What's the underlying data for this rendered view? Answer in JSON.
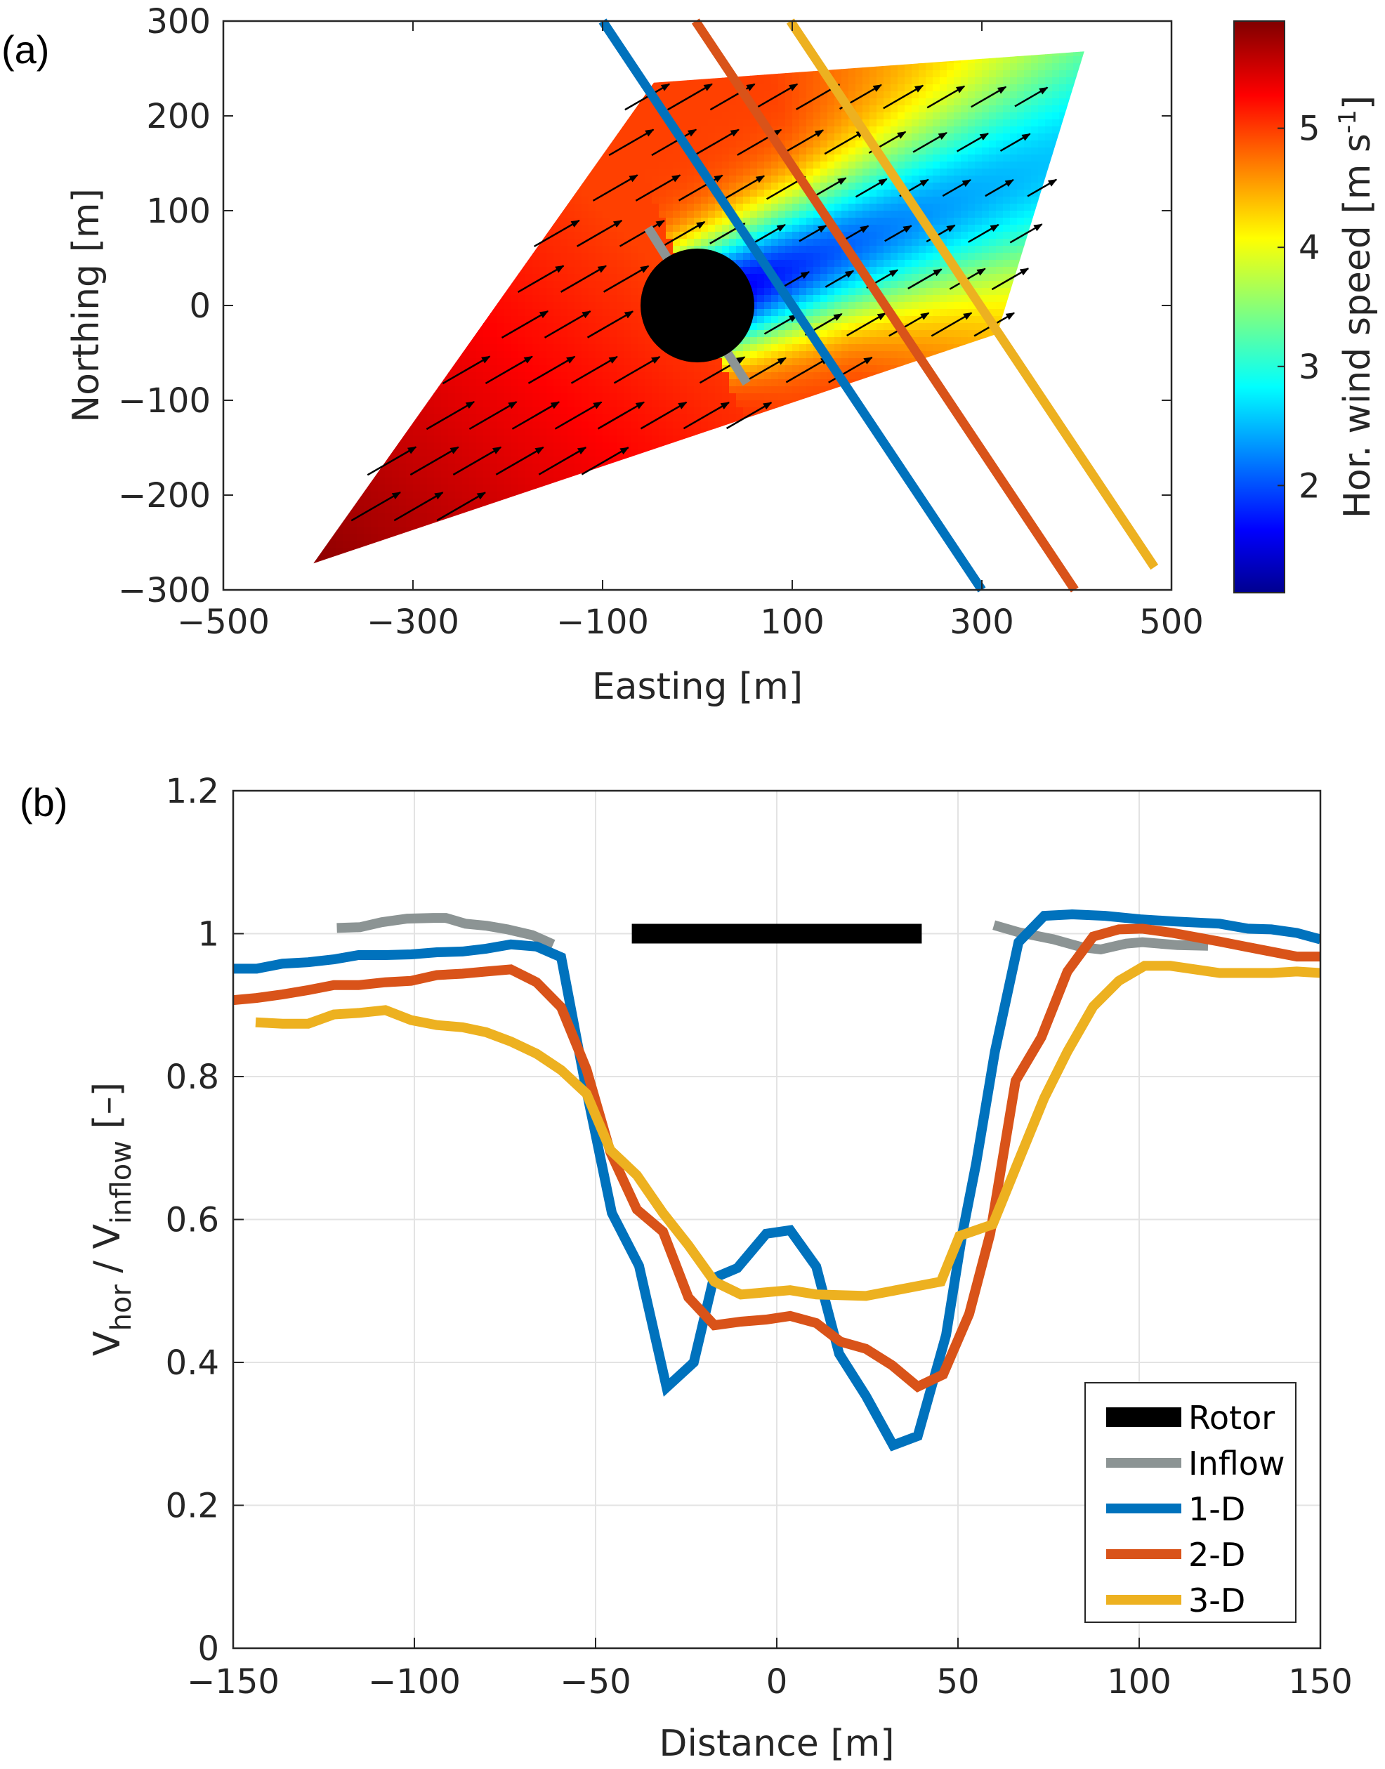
{
  "chart_data": [
    {
      "panel": "(a)",
      "type": "heatmap",
      "title": "",
      "xlabel": "Easting [m]",
      "ylabel": "Northing [m]",
      "xlim": [
        -500,
        500
      ],
      "ylim": [
        -300,
        300
      ],
      "xticks": [
        -500,
        -300,
        -100,
        100,
        300,
        500
      ],
      "yticks": [
        -300,
        -200,
        -100,
        0,
        100,
        200,
        300
      ],
      "xtick_labels": [
        "−500",
        "−300",
        "−100",
        "100",
        "300",
        "500"
      ],
      "ytick_labels": [
        "−300",
        "−200",
        "−100",
        "0",
        "100",
        "200",
        "300"
      ],
      "grid": false,
      "colorbar": {
        "label": "Hor. wind speed [m s⁻¹]",
        "label_main": "Hor. wind speed [m s",
        "label_exp": "-1",
        "label_end": "]",
        "clim": [
          1.1,
          5.9
        ],
        "ticks": [
          2,
          3,
          4,
          5
        ],
        "colormap": "jet"
      },
      "scan_area_polygon": [
        [
          -405,
          -272
        ],
        [
          -46,
          235
        ],
        [
          408,
          268
        ],
        [
          316,
          -30
        ]
      ],
      "wind_speed_field": {
        "background_speed": 5.0,
        "southwest_corner_speed": 5.8,
        "north_east_speed": 2.4,
        "wake_axis_direction_deg": 22,
        "wake_min_speed": 1.4
      },
      "rotor": {
        "center": [
          0,
          0
        ],
        "diameter": 120,
        "color": "#000000"
      },
      "inflow_line": {
        "from": [
          -52,
          82
        ],
        "to": [
          52,
          -82
        ],
        "color": "#8C9494"
      },
      "transects": [
        {
          "name": "1-D",
          "from": [
            -100,
            300
          ],
          "to": [
            300,
            -300
          ],
          "color": "#0072BD"
        },
        {
          "name": "2-D",
          "from": [
            -2,
            300
          ],
          "to": [
            398,
            -300
          ],
          "color": "#D95319"
        },
        {
          "name": "3-D",
          "from": [
            98,
            300
          ],
          "to": [
            482,
            -276
          ],
          "color": "#EDB120"
        }
      ],
      "wind_vectors": {
        "direction_deg_from_east": 30,
        "color": "#000000"
      }
    },
    {
      "panel": "(b)",
      "type": "line",
      "title": "",
      "xlabel": "Distance [m]",
      "ylabel_main": "V",
      "ylabel_sub1": "hor",
      "ylabel_mid": " / V",
      "ylabel_sub2": "inflow",
      "ylabel_end": " [–]",
      "ylabel": "V_hor / V_inflow [–]",
      "xlim": [
        -150,
        150
      ],
      "ylim": [
        0,
        1.2
      ],
      "xticks": [
        -150,
        -100,
        -50,
        0,
        50,
        100,
        150
      ],
      "yticks": [
        0,
        0.2,
        0.4,
        0.6,
        0.8,
        1,
        1.2
      ],
      "xtick_labels": [
        "−150",
        "−100",
        "−50",
        "0",
        "50",
        "100",
        "150"
      ],
      "ytick_labels": [
        "0",
        "0.2",
        "0.4",
        "0.6",
        "0.8",
        "1",
        "1.2"
      ],
      "grid": true,
      "legend_position": "bottom-right",
      "series": [
        {
          "name": "Rotor",
          "color": "#000000",
          "kind": "bar",
          "segments": [
            {
              "x": [
                -40,
                40
              ],
              "y": [
                1.0,
                1.0
              ]
            }
          ]
        },
        {
          "name": "Inflow",
          "color": "#8C9494",
          "kind": "line",
          "segments": [
            {
              "x": [
                -121.4,
                -115,
                -109,
                -102,
                -94.8,
                -91.3,
                -85.9,
                -80,
                -74.3,
                -67.5,
                -61.7
              ],
              "y": [
                1.008,
                1.009,
                1.016,
                1.021,
                1.022,
                1.022,
                1.014,
                1.011,
                1.006,
                0.998,
                0.985
              ]
            },
            {
              "x": [
                59.9,
                66.7,
                76.4,
                84.2,
                89.4,
                96.4,
                100.9,
                110.6,
                119
              ],
              "y": [
                1.012,
                1.002,
                0.992,
                0.981,
                0.978,
                0.986,
                0.988,
                0.984,
                0.983
              ]
            }
          ]
        },
        {
          "name": "1-D",
          "color": "#0072BD",
          "kind": "line",
          "segments": [
            {
              "x": [
                -150,
                -143.5,
                -136.4,
                -129.3,
                -122.2,
                -115.4,
                -108,
                -100.9,
                -93.8,
                -86.7,
                -80.2,
                -73.4,
                -66.3,
                -59.5,
                -52.5,
                -45.5,
                -38,
                -30.4,
                -22.9,
                -17.4,
                -10.9,
                -2.9,
                3.7,
                10.9,
                17.2,
                24.6,
                32.1,
                38.9,
                46.7,
                51.2,
                55,
                60.2,
                66.7,
                73.8,
                81.5,
                90.6,
                100.3,
                110,
                122.2,
                130,
                136.5,
                143.5,
                150
              ],
              "y": [
                0.951,
                0.951,
                0.958,
                0.96,
                0.964,
                0.97,
                0.97,
                0.971,
                0.974,
                0.975,
                0.979,
                0.985,
                0.982,
                0.967,
                0.78,
                0.609,
                0.535,
                0.365,
                0.4,
                0.518,
                0.532,
                0.58,
                0.585,
                0.534,
                0.412,
                0.353,
                0.284,
                0.297,
                0.438,
                0.58,
                0.678,
                0.835,
                0.988,
                1.025,
                1.027,
                1.025,
                1.02,
                1.017,
                1.014,
                1.007,
                1.006,
                1.001,
                0.992
              ]
            }
          ]
        },
        {
          "name": "2-D",
          "color": "#D95319",
          "kind": "line",
          "segments": [
            {
              "x": [
                -150,
                -143.5,
                -136.4,
                -129.3,
                -122.2,
                -115.4,
                -108,
                -100.9,
                -93.8,
                -86.7,
                -80.2,
                -73.4,
                -66.3,
                -59.5,
                -52.5,
                -45.9,
                -38.6,
                -31.4,
                -24.4,
                -17.2,
                -9.9,
                -2.9,
                3.7,
                10.9,
                17.6,
                24.6,
                31.8,
                38.9,
                45.9,
                53.1,
                58.9,
                65.9,
                73,
                80.2,
                87.3,
                94.4,
                100.9,
                109.3,
                122.2,
                133.2,
                143.5,
                150
              ],
              "y": [
                0.907,
                0.91,
                0.915,
                0.921,
                0.928,
                0.928,
                0.932,
                0.934,
                0.942,
                0.944,
                0.947,
                0.95,
                0.932,
                0.897,
                0.81,
                0.694,
                0.614,
                0.583,
                0.491,
                0.452,
                0.457,
                0.46,
                0.465,
                0.455,
                0.429,
                0.419,
                0.396,
                0.366,
                0.383,
                0.468,
                0.58,
                0.794,
                0.855,
                0.947,
                0.996,
                1.006,
                1.007,
                1.001,
                0.989,
                0.978,
                0.968,
                0.968
              ]
            }
          ]
        },
        {
          "name": "3-D",
          "color": "#EDB120",
          "kind": "line",
          "segments": [
            {
              "x": [
                -143.8,
                -136.4,
                -129.3,
                -122.2,
                -115.4,
                -108,
                -100.9,
                -93.8,
                -86.7,
                -80.2,
                -73.4,
                -66.3,
                -59.5,
                -52.5,
                -45.9,
                -38.6,
                -31.4,
                -24.4,
                -17.2,
                -9.9,
                3.7,
                10.9,
                24.6,
                45.3,
                50.4,
                59.6,
                66.7,
                73.8,
                80.2,
                87.3,
                94.4,
                101.5,
                108.6,
                122.2,
                130,
                136.5,
                143.5,
                150
              ],
              "y": [
                0.876,
                0.874,
                0.874,
                0.887,
                0.889,
                0.893,
                0.879,
                0.872,
                0.869,
                0.862,
                0.849,
                0.832,
                0.809,
                0.776,
                0.697,
                0.662,
                0.609,
                0.564,
                0.513,
                0.495,
                0.501,
                0.495,
                0.493,
                0.513,
                0.577,
                0.593,
                0.682,
                0.77,
                0.835,
                0.898,
                0.934,
                0.955,
                0.955,
                0.945,
                0.945,
                0.945,
                0.947,
                0.945
              ]
            }
          ]
        }
      ]
    }
  ]
}
